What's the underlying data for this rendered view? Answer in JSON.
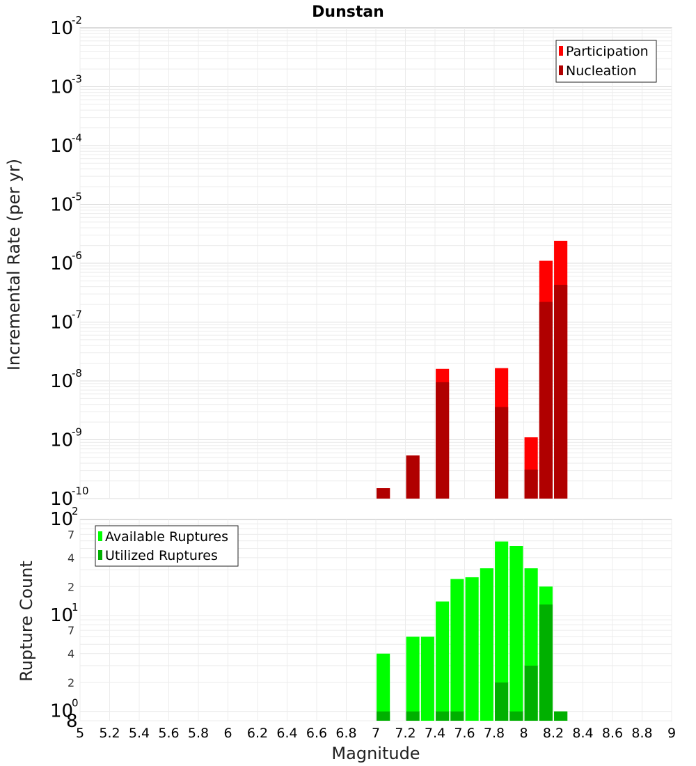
{
  "chart_data": [
    {
      "type": "bar",
      "title": "Dunstan",
      "xlabel": "Magnitude",
      "ylabel": "Incremental Rate (per yr)",
      "scale_y": "log",
      "ylim": [
        1e-10,
        0.01
      ],
      "xlim": [
        5,
        9
      ],
      "grid": true,
      "legend_position": "top-right",
      "y_tick_exponents": [
        "-10",
        "-9",
        "-8",
        "-7",
        "-6",
        "-5",
        "-4",
        "-3",
        "-2"
      ],
      "bar_width": 0.09,
      "series": [
        {
          "name": "Participation",
          "color": "#ff0000",
          "points": [
            {
              "x": 7.05,
              "y": 1.5e-10
            },
            {
              "x": 7.25,
              "y": 5.4e-10
            },
            {
              "x": 7.45,
              "y": 1.6e-08
            },
            {
              "x": 7.85,
              "y": 1.65e-08
            },
            {
              "x": 8.05,
              "y": 1.1e-09
            },
            {
              "x": 8.15,
              "y": 1.1e-06
            },
            {
              "x": 8.25,
              "y": 2.4e-06
            }
          ]
        },
        {
          "name": "Nucleation",
          "color": "#b00000",
          "points": [
            {
              "x": 7.05,
              "y": 1.5e-10
            },
            {
              "x": 7.25,
              "y": 5.4e-10
            },
            {
              "x": 7.45,
              "y": 9.5e-09
            },
            {
              "x": 7.85,
              "y": 3.6e-09
            },
            {
              "x": 8.05,
              "y": 3.1e-10
            },
            {
              "x": 8.15,
              "y": 2.2e-07
            },
            {
              "x": 8.25,
              "y": 4.3e-07
            }
          ]
        }
      ]
    },
    {
      "type": "bar",
      "xlabel": "Magnitude",
      "ylabel": "Rupture Count",
      "scale_y": "log",
      "ylim": [
        0.8,
        100
      ],
      "xlim": [
        5,
        9
      ],
      "grid": true,
      "legend_position": "top-left",
      "x_ticks": [
        "5",
        "5.2",
        "5.4",
        "5.6",
        "5.8",
        "6",
        "6.2",
        "6.4",
        "6.6",
        "6.8",
        "7",
        "7.2",
        "7.4",
        "7.6",
        "7.8",
        "8",
        "8.2",
        "8.4",
        "8.6",
        "8.8",
        "9"
      ],
      "y_major_ticks": [
        {
          "base": "10",
          "exp": "0"
        },
        {
          "base": "10",
          "exp": "1"
        },
        {
          "base": "10",
          "exp": "2"
        }
      ],
      "y_minor_ticks": [
        "8",
        "2",
        "4",
        "7",
        "2",
        "4",
        "7"
      ],
      "bar_width": 0.09,
      "series": [
        {
          "name": "Available Ruptures",
          "color": "#00ff00",
          "points": [
            {
              "x": 7.05,
              "y": 4
            },
            {
              "x": 7.25,
              "y": 6
            },
            {
              "x": 7.35,
              "y": 6
            },
            {
              "x": 7.45,
              "y": 14
            },
            {
              "x": 7.55,
              "y": 24
            },
            {
              "x": 7.65,
              "y": 25
            },
            {
              "x": 7.75,
              "y": 31
            },
            {
              "x": 7.85,
              "y": 59
            },
            {
              "x": 7.95,
              "y": 53
            },
            {
              "x": 8.05,
              "y": 31
            },
            {
              "x": 8.15,
              "y": 20
            },
            {
              "x": 8.25,
              "y": 1
            }
          ]
        },
        {
          "name": "Utilized Ruptures",
          "color": "#00b000",
          "points": [
            {
              "x": 7.05,
              "y": 1
            },
            {
              "x": 7.25,
              "y": 1
            },
            {
              "x": 7.45,
              "y": 1
            },
            {
              "x": 7.55,
              "y": 1
            },
            {
              "x": 7.85,
              "y": 2
            },
            {
              "x": 7.95,
              "y": 1
            },
            {
              "x": 8.05,
              "y": 3
            },
            {
              "x": 8.15,
              "y": 13
            },
            {
              "x": 8.25,
              "y": 1
            }
          ]
        }
      ]
    }
  ]
}
